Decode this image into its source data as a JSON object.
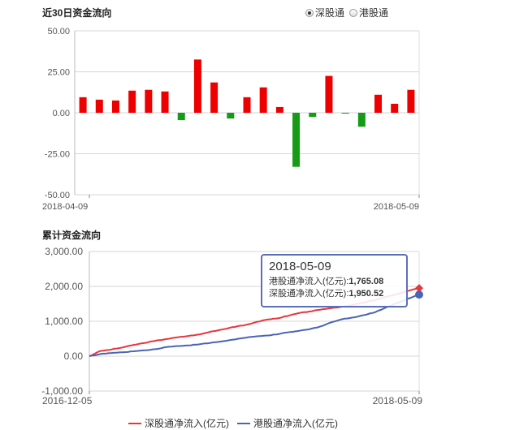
{
  "panel1": {
    "title": "近30日资金流向",
    "radio_options": [
      {
        "label": "深股通",
        "selected": true
      },
      {
        "label": "港股通",
        "selected": false
      }
    ]
  },
  "panel2": {
    "title": "累计资金流向",
    "tooltip": {
      "date": "2018-05-09",
      "row1_label": "港股通净流入(亿元):",
      "row1_value": "1,765.08",
      "row2_label": "深股通净流入(亿元):",
      "row2_value": "1,950.52"
    }
  },
  "colors": {
    "positive": "#ee0000",
    "negative": "#169b16",
    "shengutong": "#e8353b",
    "ganggutong": "#4a63b5"
  },
  "chart_data": [
    {
      "type": "bar",
      "title": "近30日资金流向",
      "ylim": [
        -50,
        50
      ],
      "yticks": [
        "50.00",
        "25.00",
        "0.00",
        "-25.00",
        "-50.00"
      ],
      "ytick_values": [
        50,
        25,
        0,
        -25,
        -50
      ],
      "xticks": [
        "2018-04-09",
        "2018-05-09"
      ],
      "values": [
        9.5,
        8,
        7.5,
        13.5,
        14,
        13,
        -4.5,
        32.5,
        18.5,
        -3.5,
        9.5,
        15.5,
        3.5,
        -33,
        -2.5,
        22.5,
        -0.5,
        -8.5,
        11,
        5.5,
        14
      ],
      "grid": true
    },
    {
      "type": "line",
      "title": "累计资金流向",
      "ylim": [
        -1000,
        3000
      ],
      "yticks": [
        "3,000.00",
        "2,000.00",
        "1,000.00",
        "0.00",
        "-1,000.00"
      ],
      "ytick_values": [
        3000,
        2000,
        1000,
        0,
        -1000
      ],
      "xticks": [
        "2016-12-05",
        "2018-05-09"
      ],
      "series": [
        {
          "name": "深股通净流入(亿元)",
          "values": [
            0,
            150,
            190,
            250,
            320,
            380,
            440,
            490,
            540,
            580,
            620,
            700,
            760,
            830,
            880,
            960,
            1040,
            1080,
            1150,
            1230,
            1280,
            1330,
            1380,
            1420,
            1470,
            1540,
            1610,
            1700,
            1780,
            1870,
            1950.52
          ]
        },
        {
          "name": "港股通净流入(亿元)",
          "values": [
            0,
            60,
            90,
            110,
            140,
            170,
            200,
            260,
            290,
            310,
            340,
            380,
            420,
            470,
            520,
            560,
            590,
            620,
            680,
            720,
            770,
            850,
            970,
            1060,
            1110,
            1180,
            1260,
            1400,
            1520,
            1650,
            1765.08
          ]
        }
      ],
      "grid": true,
      "legend": "bottom"
    }
  ]
}
